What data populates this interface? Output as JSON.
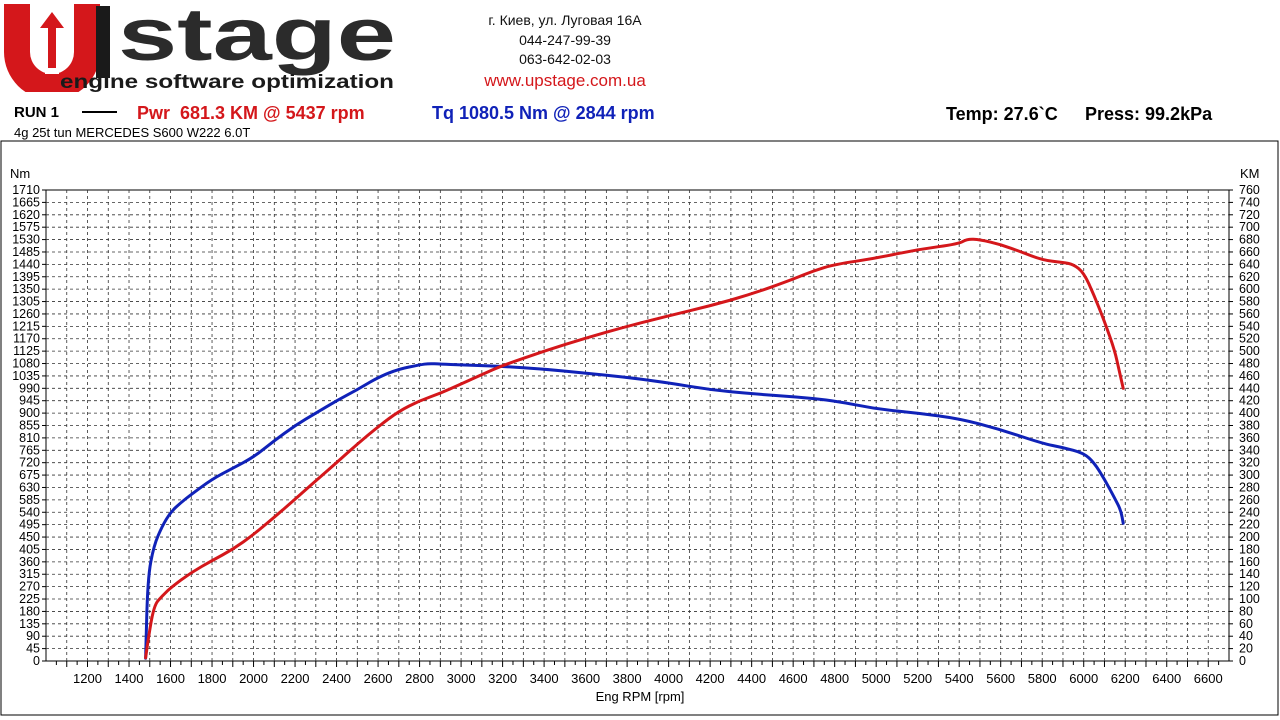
{
  "header": {
    "logo": {
      "text": "stage",
      "tagline": "engine software optimization"
    },
    "address": [
      "г. Киев, ул. Луговая 16А",
      "044-247-99-39",
      "063-642-02-03"
    ],
    "website": "www.upstage.com.ua"
  },
  "run": {
    "label": "RUN 1",
    "power": "Pwr  681.3 KM @ 5437 rpm",
    "torque": "Tq 1080.5 Nm @ 2844 rpm",
    "temp": "Temp: 27.6`C",
    "press": "Press: 99.2kPa",
    "vehicle": "4g 25t tun MERCEDES S600 W222 6.0T"
  },
  "colors": {
    "power": "#d4171b",
    "torque": "#1022b8",
    "accent": "#d4171b"
  },
  "chart_data": {
    "type": "line",
    "xlabel": "Eng RPM [rpm]",
    "ylabel_left": "Nm",
    "ylabel_right": "KM",
    "xlim": [
      1000,
      6700
    ],
    "ylim_left": [
      0,
      1710
    ],
    "ylim_right": [
      0,
      760
    ],
    "x_ticks": [
      1200,
      1400,
      1600,
      1800,
      2000,
      2200,
      2400,
      2600,
      2800,
      3000,
      3200,
      3400,
      3600,
      3800,
      4000,
      4200,
      4400,
      4600,
      4800,
      5000,
      5200,
      5400,
      5600,
      5800,
      6000,
      6200,
      6400,
      6600
    ],
    "y_left_ticks": [
      0,
      45,
      90,
      135,
      180,
      225,
      270,
      315,
      360,
      405,
      450,
      495,
      540,
      585,
      630,
      675,
      720,
      765,
      810,
      855,
      900,
      945,
      990,
      1035,
      1080,
      1125,
      1170,
      1215,
      1260,
      1305,
      1350,
      1395,
      1440,
      1485,
      1530,
      1575,
      1620,
      1665,
      1710
    ],
    "y_right_ticks": [
      0,
      20,
      40,
      60,
      80,
      100,
      120,
      140,
      160,
      180,
      200,
      220,
      240,
      260,
      280,
      300,
      320,
      340,
      360,
      380,
      400,
      420,
      440,
      460,
      480,
      500,
      520,
      540,
      560,
      580,
      600,
      620,
      640,
      660,
      680,
      700,
      720,
      740,
      760
    ],
    "grid": true,
    "series": [
      {
        "name": "Tq",
        "axis": "left",
        "color": "#1022b8",
        "x": [
          1480,
          1490,
          1520,
          1560,
          1600,
          1650,
          1700,
          1800,
          1900,
          2000,
          2100,
          2200,
          2300,
          2400,
          2500,
          2600,
          2700,
          2800,
          2844,
          2900,
          3000,
          3200,
          3400,
          3600,
          3800,
          4000,
          4200,
          4400,
          4600,
          4800,
          5000,
          5200,
          5400,
          5600,
          5800,
          5900,
          6000,
          6050,
          6100,
          6150,
          6180,
          6190
        ],
        "y": [
          10,
          300,
          420,
          490,
          540,
          575,
          605,
          660,
          700,
          740,
          800,
          855,
          900,
          945,
          985,
          1030,
          1060,
          1075,
          1080,
          1078,
          1075,
          1070,
          1060,
          1045,
          1030,
          1010,
          985,
          970,
          960,
          945,
          915,
          900,
          880,
          840,
          790,
          775,
          755,
          720,
          660,
          590,
          545,
          500
        ]
      },
      {
        "name": "Pwr",
        "axis": "right",
        "color": "#d4171b",
        "x": [
          1480,
          1490,
          1520,
          1560,
          1600,
          1700,
          1800,
          1900,
          2000,
          2100,
          2200,
          2300,
          2400,
          2500,
          2600,
          2700,
          2800,
          2900,
          3000,
          3100,
          3200,
          3400,
          3600,
          3800,
          4000,
          4200,
          4400,
          4600,
          4700,
          4800,
          5000,
          5200,
          5400,
          5437,
          5500,
          5600,
          5700,
          5800,
          5900,
          5950,
          6000,
          6050,
          6100,
          6150,
          6170,
          6190
        ],
        "y": [
          5,
          30,
          90,
          105,
          118,
          143,
          162,
          180,
          204,
          232,
          261,
          291,
          320,
          350,
          378,
          403,
          420,
          432,
          447,
          462,
          477,
          500,
          521,
          540,
          557,
          573,
          592,
          616,
          630,
          640,
          650,
          664,
          673,
          681,
          680,
          672,
          660,
          647,
          643,
          640,
          627,
          590,
          548,
          500,
          470,
          440
        ]
      }
    ]
  }
}
